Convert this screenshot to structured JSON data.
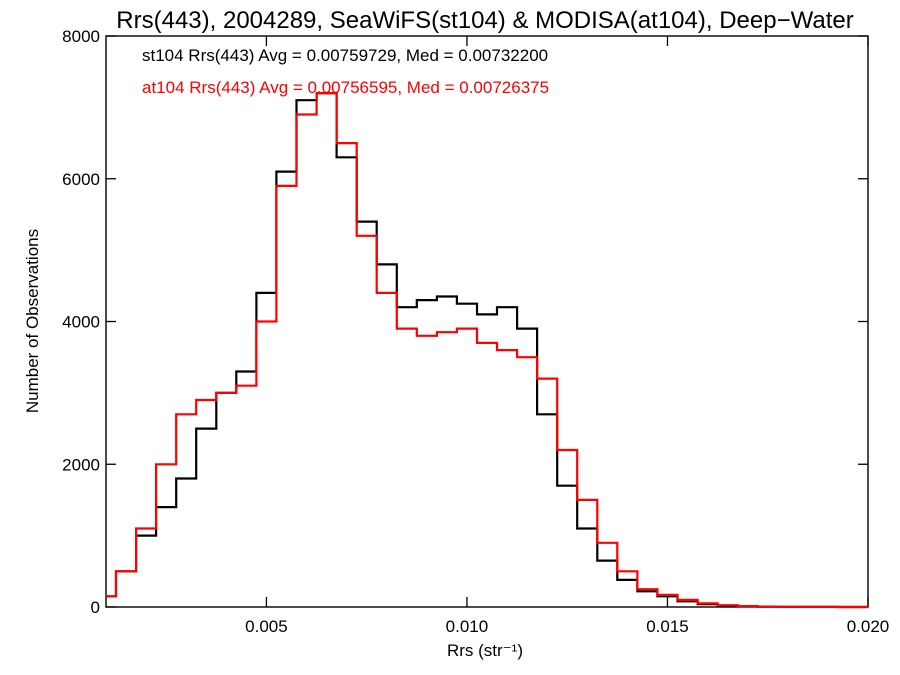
{
  "chart_data": {
    "type": "line",
    "title": "Rrs(443), 2004289, SeaWiFS(st104) & MODISA(at104), Deep−Water",
    "xlabel": "Rrs (str⁻¹)",
    "ylabel": "Number of Observations",
    "xlim": [
      0.001,
      0.02
    ],
    "ylim": [
      0,
      8000
    ],
    "x_ticks": [
      0.005,
      0.01,
      0.015,
      0.02
    ],
    "x_tick_labels": [
      "0.005",
      "0.010",
      "0.015",
      "0.020"
    ],
    "y_ticks": [
      0,
      2000,
      4000,
      6000,
      8000
    ],
    "y_tick_labels": [
      "0",
      "2000",
      "4000",
      "6000",
      "8000"
    ],
    "grid": false,
    "step": true,
    "legend_position": "top-left",
    "legend": [
      "st104 Rrs(443) Avg = 0.00759729, Med = 0.00732200",
      "at104 Rrs(443) Avg = 0.00756595, Med = 0.00726375"
    ],
    "series": [
      {
        "color": "#000000",
        "x": [
          0.001,
          0.0015,
          0.002,
          0.0025,
          0.003,
          0.0035,
          0.004,
          0.0045,
          0.005,
          0.0055,
          0.006,
          0.0065,
          0.007,
          0.0075,
          0.008,
          0.0085,
          0.009,
          0.0095,
          0.01,
          0.0105,
          0.011,
          0.0115,
          0.012,
          0.0125,
          0.013,
          0.0135,
          0.014,
          0.0145,
          0.015,
          0.0155,
          0.016,
          0.0165,
          0.017,
          0.0175,
          0.018,
          0.0185,
          0.019,
          0.0195,
          0.02
        ],
        "y": [
          150,
          500,
          1000,
          1400,
          1800,
          2500,
          3000,
          3300,
          4400,
          6100,
          7100,
          7200,
          6300,
          5400,
          4800,
          4200,
          4300,
          4350,
          4250,
          4100,
          4200,
          3900,
          2700,
          1700,
          1100,
          650,
          380,
          220,
          150,
          80,
          40,
          20,
          10,
          5,
          3,
          2,
          1,
          0,
          0
        ]
      },
      {
        "color": "#ff0000",
        "x": [
          0.001,
          0.0015,
          0.002,
          0.0025,
          0.003,
          0.0035,
          0.004,
          0.0045,
          0.005,
          0.0055,
          0.006,
          0.0065,
          0.007,
          0.0075,
          0.008,
          0.0085,
          0.009,
          0.0095,
          0.01,
          0.0105,
          0.011,
          0.0115,
          0.012,
          0.0125,
          0.013,
          0.0135,
          0.014,
          0.0145,
          0.015,
          0.0155,
          0.016,
          0.0165,
          0.017,
          0.0175,
          0.018,
          0.0185,
          0.019,
          0.0195,
          0.02
        ],
        "y": [
          150,
          500,
          1100,
          2000,
          2700,
          2900,
          3000,
          3100,
          4000,
          5900,
          6900,
          7200,
          6500,
          5200,
          4400,
          3900,
          3800,
          3850,
          3900,
          3700,
          3600,
          3500,
          3200,
          2200,
          1500,
          900,
          500,
          250,
          170,
          100,
          50,
          25,
          12,
          6,
          3,
          2,
          1,
          0,
          0
        ]
      }
    ]
  }
}
